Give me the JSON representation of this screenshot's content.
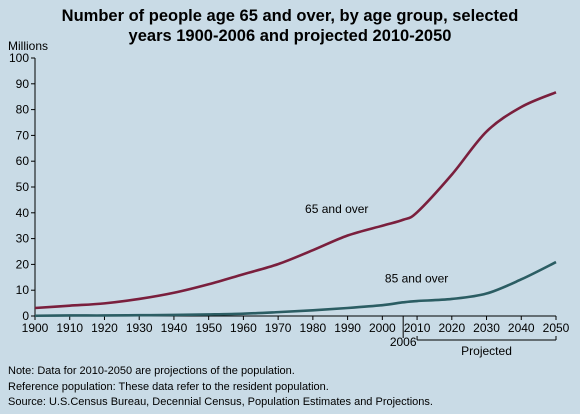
{
  "title_line1": "Number of people age 65 and over, by age group, selected",
  "title_line2": "years 1900-2006 and projected 2010-2050",
  "notes": {
    "line1": "Note: Data for 2010-2050 are projections of the population.",
    "line2": "Reference population: These data refer to the resident population.",
    "line3": "Source: U.S.Census Bureau, Decennial Census, Population Estimates and Projections."
  },
  "chart_data": {
    "type": "line",
    "title": "Number of people age 65 and over, by age group, selected years 1900-2006 and projected 2010-2050",
    "ylabel": "Millions",
    "xlabel": "",
    "ylim": [
      0,
      100
    ],
    "xlim": [
      1900,
      2050
    ],
    "yticks": [
      0,
      10,
      20,
      30,
      40,
      50,
      60,
      70,
      80,
      90,
      100
    ],
    "xticks": [
      1900,
      1910,
      1920,
      1930,
      1940,
      1950,
      1960,
      1970,
      1980,
      1990,
      2000,
      2010,
      2020,
      2030,
      2040,
      2050
    ],
    "xtick_labels": [
      "1900",
      "1910",
      "1920",
      "1930",
      "1940",
      "1950",
      "1960",
      "1970",
      "1980",
      "1990",
      "2000",
      "2010",
      "2020",
      "2030",
      "2040",
      "2050"
    ],
    "extra_tick": {
      "x": 2006,
      "label": "2006"
    },
    "projected_label": "Projected",
    "projected_range": [
      2010,
      2050
    ],
    "grid": false,
    "series": [
      {
        "name": "65 and over",
        "color": "#7a1f3d",
        "label_at": [
          1996,
          40
        ],
        "x": [
          1900,
          1910,
          1920,
          1930,
          1940,
          1950,
          1960,
          1970,
          1980,
          1990,
          2000,
          2006,
          2010,
          2020,
          2030,
          2040,
          2050
        ],
        "values": [
          3.1,
          4.0,
          4.9,
          6.6,
          9.0,
          12.3,
          16.2,
          20.1,
          25.5,
          31.2,
          35.0,
          37.3,
          40.2,
          54.8,
          71.5,
          81.0,
          86.7
        ]
      },
      {
        "name": "85 and over",
        "color": "#2b5d63",
        "label_at": [
          2019,
          13
        ],
        "x": [
          1900,
          1910,
          1920,
          1930,
          1940,
          1950,
          1960,
          1970,
          1980,
          1990,
          2000,
          2006,
          2010,
          2020,
          2030,
          2040,
          2050
        ],
        "values": [
          0.1,
          0.2,
          0.2,
          0.3,
          0.4,
          0.6,
          0.9,
          1.5,
          2.2,
          3.1,
          4.2,
          5.3,
          5.8,
          6.6,
          8.7,
          14.2,
          20.9
        ]
      }
    ]
  }
}
